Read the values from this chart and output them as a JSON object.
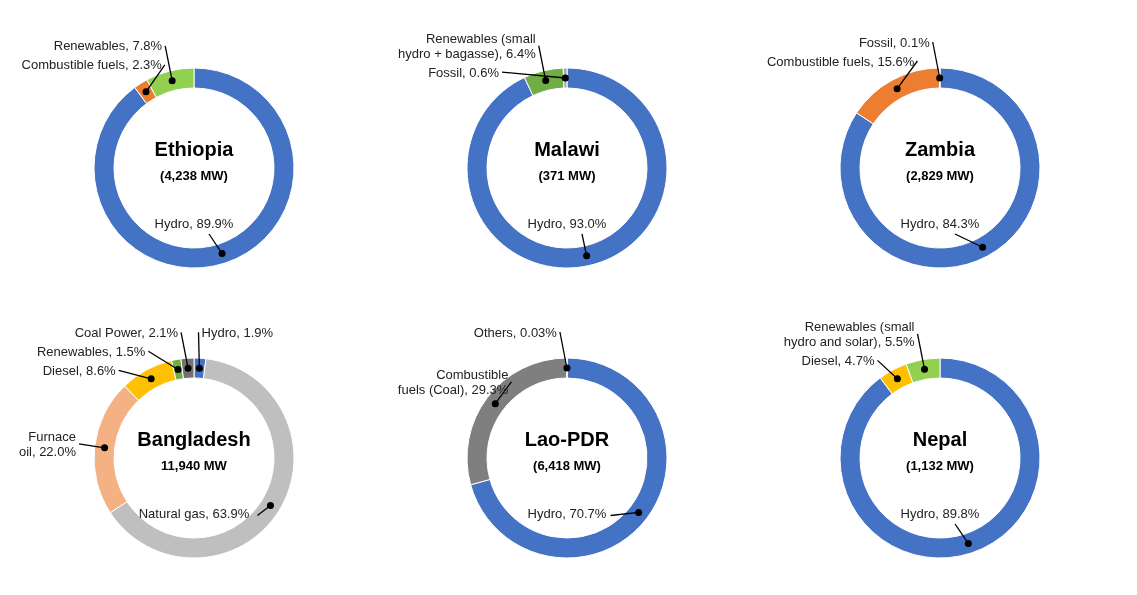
{
  "chart_data": [
    {
      "type": "donut",
      "title": "Ethiopia",
      "subtitle": "(4,238 MW)",
      "categories": [
        "Hydro",
        "Combustible fuels",
        "Renewables"
      ],
      "values": [
        89.9,
        2.3,
        7.8
      ],
      "colors": [
        "#4472c4",
        "#ed7d31",
        "#92d050"
      ],
      "value_labels": [
        "89.9%",
        "2.3%",
        "7.8%"
      ]
    },
    {
      "type": "donut",
      "title": "Malawi",
      "subtitle": "(371 MW)",
      "categories": [
        "Hydro",
        "Renewables (small hydro + bagasse)",
        "Fossil"
      ],
      "values": [
        93.0,
        6.4,
        0.6
      ],
      "colors": [
        "#4472c4",
        "#70ad47",
        "#a5a5a5"
      ],
      "value_labels": [
        "93.0%",
        "6.4%",
        "0.6%"
      ]
    },
    {
      "type": "donut",
      "title": "Zambia",
      "subtitle": "(2,829 MW)",
      "categories": [
        "Hydro",
        "Combustible fuels",
        "Fossil"
      ],
      "values": [
        84.3,
        15.6,
        0.1
      ],
      "colors": [
        "#4472c4",
        "#ed7d31",
        "#a5a5a5"
      ],
      "value_labels": [
        "84.3%",
        "15.6%",
        "0.1%"
      ]
    },
    {
      "type": "donut",
      "title": "Bangladesh",
      "subtitle": "11,940 MW",
      "categories": [
        "Hydro",
        "Natural gas",
        "Furnace oil",
        "Diesel",
        "Renewables",
        "Coal Power"
      ],
      "values": [
        1.9,
        63.9,
        22.0,
        8.6,
        1.5,
        2.1
      ],
      "colors": [
        "#4472c4",
        "#bfbfbf",
        "#f4b183",
        "#ffc000",
        "#70ad47",
        "#767171"
      ],
      "value_labels": [
        "1.9%",
        "63.9%",
        "22.0%",
        "8.6%",
        "1.5%",
        "2.1%"
      ]
    },
    {
      "type": "donut",
      "title": "Lao-PDR",
      "subtitle": "(6,418 MW)",
      "categories": [
        "Hydro",
        "Combustible fuels (Coal)",
        "Others"
      ],
      "values": [
        70.7,
        29.3,
        0.03
      ],
      "colors": [
        "#4472c4",
        "#7f7f7f",
        "#a5a5a5"
      ],
      "value_labels": [
        "70.7%",
        "29.3%",
        "0.03%"
      ]
    },
    {
      "type": "donut",
      "title": "Nepal",
      "subtitle": "(1,132 MW)",
      "categories": [
        "Hydro",
        "Diesel",
        "Renewables (small hydro and solar)"
      ],
      "values": [
        89.8,
        4.7,
        5.5
      ],
      "colors": [
        "#4472c4",
        "#ffc000",
        "#92d050"
      ],
      "value_labels": [
        "89.8%",
        "4.7%",
        "5.5%"
      ]
    }
  ]
}
